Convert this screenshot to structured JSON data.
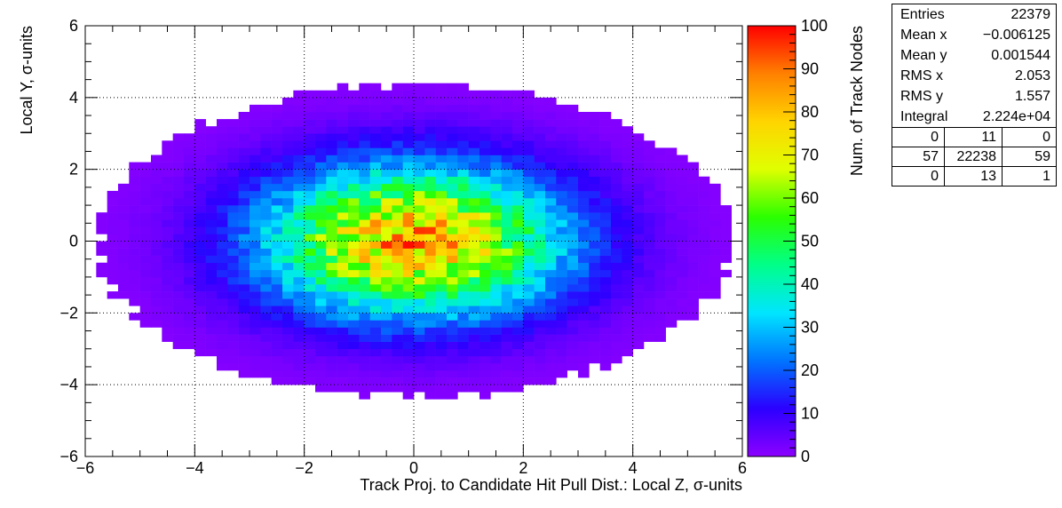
{
  "chart_data": {
    "type": "heatmap",
    "title": "",
    "xlabel": "Track Proj. to Candidate Hit Pull Dist.: Local Z, σ-units",
    "ylabel": "Local Y, σ-units",
    "xlim": [
      -6,
      6
    ],
    "ylim": [
      -6,
      6
    ],
    "x_ticks": [
      "−6",
      "−4",
      "−2",
      "0",
      "2",
      "4",
      "6"
    ],
    "y_ticks": [
      "−6",
      "−4",
      "−2",
      "0",
      "2",
      "4",
      "6"
    ],
    "grid": true,
    "bins_x": 60,
    "bins_y": 60,
    "distribution": {
      "mean_x": -0.006125,
      "mean_y": 0.001544,
      "rms_x": 2.053,
      "rms_y": 1.557,
      "peak": 100
    },
    "colorbar": {
      "label": "Num. of Track Nodes",
      "min": 0,
      "max": 100,
      "ticks": [
        "0",
        "10",
        "20",
        "30",
        "40",
        "50",
        "60",
        "70",
        "80",
        "90",
        "100"
      ],
      "palette": [
        "#8c00ff",
        "#2b00ff",
        "#0074ff",
        "#00e5ff",
        "#00ff8a",
        "#2bff00",
        "#e0ff00",
        "#ffd400",
        "#ff8000",
        "#ff0000"
      ]
    }
  },
  "stats": {
    "entries_label": "Entries",
    "entries": "22379",
    "mean_x_label": "Mean x",
    "mean_x": "−0.006125",
    "mean_y_label": "Mean y",
    "mean_y": "0.001544",
    "rms_x_label": "RMS x",
    "rms_x": "2.053",
    "rms_y_label": "RMS y",
    "rms_y": "1.557",
    "integral_label": "Integral",
    "integral": "2.224e+04",
    "overflow_table": [
      [
        "0",
        "11",
        "0"
      ],
      [
        "57",
        "22238",
        "59"
      ],
      [
        "0",
        "13",
        "1"
      ]
    ]
  }
}
